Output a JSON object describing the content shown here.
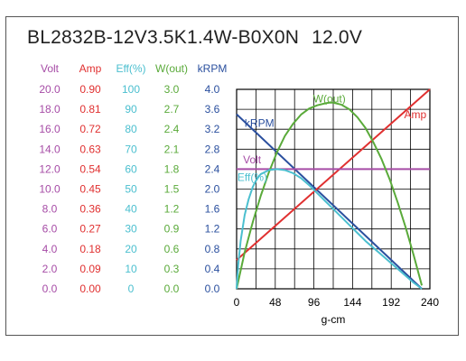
{
  "title": {
    "model": "BL2832B-12V3.5K1.4W-B0X0N",
    "voltage": "12.0V"
  },
  "chart_data": {
    "type": "line",
    "xlabel": "g-cm",
    "x_ticks": [
      "0",
      "48",
      "96",
      "144",
      "192",
      "240"
    ],
    "xlim": [
      0,
      240
    ],
    "grid": true,
    "scales": [
      {
        "key": "volt",
        "label": "Volt",
        "color": "#a64ca6",
        "max": 20,
        "ticks": [
          "20.0",
          "18.0",
          "16.0",
          "14.0",
          "12.0",
          "10.0",
          "8.0",
          "6.0",
          "4.0",
          "2.0",
          "0.0"
        ]
      },
      {
        "key": "amp",
        "label": "Amp",
        "color": "#e03030",
        "max": 0.9,
        "ticks": [
          "0.90",
          "0.81",
          "0.72",
          "0.63",
          "0.54",
          "0.45",
          "0.36",
          "0.27",
          "0.18",
          "0.09",
          "0.00"
        ]
      },
      {
        "key": "eff",
        "label": "Eff(%)",
        "color": "#4bbfcf",
        "max": 100,
        "ticks": [
          "100",
          "90",
          "80",
          "70",
          "60",
          "50",
          "40",
          "30",
          "20",
          "10",
          "0"
        ]
      },
      {
        "key": "wout",
        "label": "W(out)",
        "color": "#5aaa3a",
        "max": 3.0,
        "ticks": [
          "3.0",
          "2.7",
          "2.4",
          "2.1",
          "1.8",
          "1.5",
          "1.2",
          "0.9",
          "0.6",
          "0.3",
          "0.0"
        ]
      },
      {
        "key": "krpm",
        "label": "kRPM",
        "color": "#2a4f9e",
        "max": 4.0,
        "ticks": [
          "4.0",
          "3.6",
          "3.2",
          "2.8",
          "2.4",
          "2.0",
          "1.6",
          "1.2",
          "0.8",
          "0.4",
          "0.0"
        ]
      }
    ],
    "series": [
      {
        "name": "kRPM",
        "scale": "krpm",
        "color": "#2a4f9e",
        "points": [
          [
            0,
            3.5
          ],
          [
            230,
            0
          ]
        ]
      },
      {
        "name": "Amp",
        "scale": "amp",
        "color": "#e03030",
        "points": [
          [
            0,
            0.13
          ],
          [
            240,
            0.9
          ]
        ]
      },
      {
        "name": "Volt",
        "scale": "volt",
        "color": "#a64ca6",
        "points": [
          [
            0,
            12.0
          ],
          [
            240,
            12.0
          ]
        ]
      },
      {
        "name": "W(out)",
        "scale": "wout",
        "color": "#5aaa3a",
        "points": [
          [
            0,
            0
          ],
          [
            10,
            0.55
          ],
          [
            20,
            1.0
          ],
          [
            30,
            1.4
          ],
          [
            40,
            1.75
          ],
          [
            50,
            2.05
          ],
          [
            60,
            2.3
          ],
          [
            70,
            2.48
          ],
          [
            80,
            2.62
          ],
          [
            90,
            2.71
          ],
          [
            100,
            2.76
          ],
          [
            110,
            2.79
          ],
          [
            115,
            2.8
          ],
          [
            120,
            2.8
          ],
          [
            130,
            2.77
          ],
          [
            140,
            2.7
          ],
          [
            150,
            2.58
          ],
          [
            160,
            2.42
          ],
          [
            170,
            2.2
          ],
          [
            180,
            1.95
          ],
          [
            190,
            1.65
          ],
          [
            200,
            1.3
          ],
          [
            210,
            0.92
          ],
          [
            220,
            0.5
          ],
          [
            230,
            0.05
          ]
        ]
      },
      {
        "name": "Eff(%)",
        "scale": "eff",
        "color": "#4bbfcf",
        "points": [
          [
            0,
            0
          ],
          [
            2,
            12
          ],
          [
            5,
            24
          ],
          [
            10,
            37
          ],
          [
            15,
            45
          ],
          [
            20,
            51
          ],
          [
            25,
            55
          ],
          [
            30,
            57.5
          ],
          [
            40,
            59.5
          ],
          [
            50,
            60
          ],
          [
            60,
            59.5
          ],
          [
            70,
            58
          ],
          [
            80,
            55.5
          ],
          [
            90,
            52
          ],
          [
            100,
            48
          ],
          [
            110,
            44
          ],
          [
            120,
            40
          ],
          [
            130,
            36
          ],
          [
            140,
            32
          ],
          [
            150,
            28
          ],
          [
            160,
            24
          ],
          [
            170,
            20.5
          ],
          [
            180,
            17
          ],
          [
            190,
            13.5
          ],
          [
            200,
            10
          ],
          [
            210,
            6.5
          ],
          [
            220,
            3
          ],
          [
            230,
            0
          ]
        ]
      }
    ],
    "annotations": [
      {
        "text": "kRPM",
        "color": "#2a4f9e",
        "x": 10,
        "y": 3.25,
        "scale": "krpm"
      },
      {
        "text": "Amp",
        "color": "#e03030",
        "x": 208,
        "y": 0.77,
        "scale": "amp"
      },
      {
        "text": "W(out)",
        "color": "#5aaa3a",
        "x": 95,
        "y": 2.8,
        "scale": "wout"
      },
      {
        "text": "Volt",
        "color": "#a64ca6",
        "x": 8,
        "y": 12.6,
        "scale": "volt"
      },
      {
        "text": "Eff(%)",
        "color": "#4bbfcf",
        "x": 1,
        "y": 54,
        "scale": "eff"
      }
    ]
  }
}
